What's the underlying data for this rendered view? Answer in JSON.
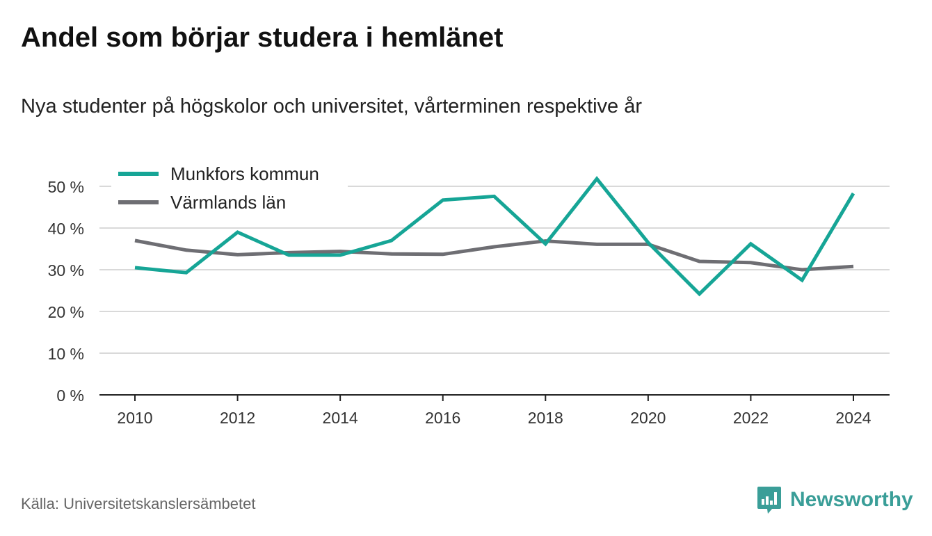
{
  "header": {
    "title": "Andel som börjar studera i hemlänet",
    "subtitle": "Nya studenter på högskolor och universitet, vårterminen respektive år"
  },
  "footer": {
    "source": "Källa: Universitetskanslersämbetet",
    "brand": "Newsworthy",
    "brand_icon": "bar-chart-speech-bubble-icon"
  },
  "colors": {
    "munkfors": "#16a596",
    "varmland": "#6e6e73",
    "grid": "#d9d9d9",
    "axis": "#222222",
    "brand": "#3a9e98"
  },
  "chart_data": {
    "type": "line",
    "x": [
      2010,
      2011,
      2012,
      2013,
      2014,
      2015,
      2016,
      2017,
      2018,
      2019,
      2020,
      2021,
      2022,
      2023,
      2024
    ],
    "x_ticks": [
      "2010",
      "2012",
      "2014",
      "2016",
      "2018",
      "2020",
      "2022",
      "2024"
    ],
    "y_ticks": [
      "0 %",
      "10 %",
      "20 %",
      "30 %",
      "40 %",
      "50 %"
    ],
    "ylim": [
      0,
      55
    ],
    "grid": "horizontal",
    "legend_position": "top-left",
    "series": [
      {
        "name": "Munkfors kommun",
        "color": "#16a596",
        "values": [
          30.5,
          29.3,
          39,
          33.5,
          33.5,
          37,
          46.7,
          47.6,
          36.2,
          51.8,
          36.5,
          24.2,
          36.2,
          27.5,
          48.3
        ]
      },
      {
        "name": "Värmlands län",
        "color": "#6e6e73",
        "values": [
          37,
          34.7,
          33.6,
          34.1,
          34.4,
          33.8,
          33.7,
          35.5,
          36.9,
          36.1,
          36.1,
          32,
          31.7,
          30,
          30.8
        ]
      }
    ]
  }
}
